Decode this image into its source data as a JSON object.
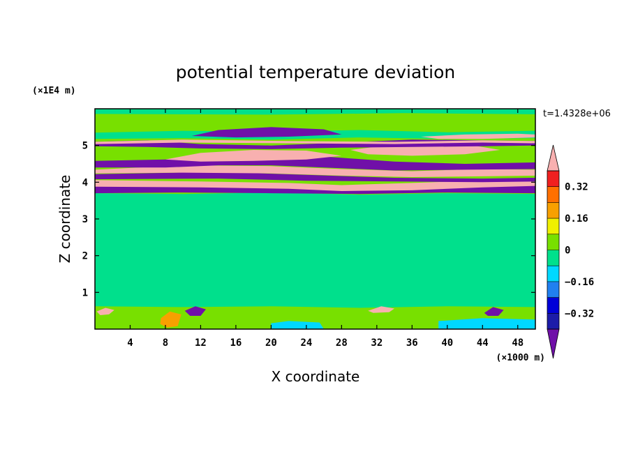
{
  "chart_data": {
    "type": "heatmap",
    "title": "potential temperature deviation",
    "xlabel": "X coordinate",
    "ylabel": "Z coordinate",
    "x_unit": "(×1000 m)",
    "y_unit": "(×1E4 m)",
    "time_label": "t=1.4328e+06",
    "xlim": [
      0,
      50
    ],
    "ylim": [
      0,
      6
    ],
    "x_ticks": [
      4,
      8,
      12,
      16,
      20,
      24,
      28,
      32,
      36,
      40,
      44,
      48
    ],
    "x_tick_labels": [
      "4",
      "8",
      "12",
      "16",
      "20",
      "24",
      "28",
      "32",
      "36",
      "40",
      "44",
      "48"
    ],
    "y_ticks": [
      1,
      2,
      3,
      4,
      5
    ],
    "y_tick_labels": [
      "1",
      "2",
      "3",
      "4",
      "5"
    ],
    "colorbar": {
      "levels": [
        -0.4,
        -0.32,
        -0.24,
        -0.16,
        -0.08,
        0,
        0.08,
        0.16,
        0.24,
        0.32,
        0.4
      ],
      "labeled_levels": [
        0.32,
        0.16,
        0,
        -0.16,
        -0.32
      ],
      "labeled_text": [
        "0.32",
        "0.16",
        "0",
        "−0.16",
        "−0.32"
      ],
      "colors_bottom_to_top": [
        "#1c1ca8",
        "#0000d8",
        "#2080f0",
        "#00d8ff",
        "#00e08c",
        "#78e000",
        "#f0f000",
        "#f8a000",
        "#ff7000",
        "#f02020"
      ],
      "under_color": "#7010a8",
      "over_color": "#f8b0b0"
    },
    "background_color": "#78e000",
    "bands": [
      {
        "color": "#00e08c",
        "points": [
          [
            0,
            3.7
          ],
          [
            10,
            3.68
          ],
          [
            20,
            3.72
          ],
          [
            30,
            3.66
          ],
          [
            40,
            3.7
          ],
          [
            50,
            3.68
          ],
          [
            50,
            0.6
          ],
          [
            40,
            0.62
          ],
          [
            30,
            0.58
          ],
          [
            20,
            0.62
          ],
          [
            10,
            0.6
          ],
          [
            0,
            0.62
          ]
        ]
      },
      {
        "color": "#00e08c",
        "points": [
          [
            0,
            5.35
          ],
          [
            10,
            5.4
          ],
          [
            20,
            5.38
          ],
          [
            30,
            5.42
          ],
          [
            40,
            5.36
          ],
          [
            50,
            5.4
          ],
          [
            50,
            5.2
          ],
          [
            40,
            5.18
          ],
          [
            30,
            5.22
          ],
          [
            20,
            5.16
          ],
          [
            10,
            5.2
          ],
          [
            0,
            5.18
          ]
        ]
      },
      {
        "color": "#00e08c",
        "points": [
          [
            0,
            6.0
          ],
          [
            50,
            6.0
          ],
          [
            50,
            5.85
          ],
          [
            35,
            5.88
          ],
          [
            20,
            5.84
          ],
          [
            0,
            5.86
          ]
        ]
      },
      {
        "color": "#7010a8",
        "points": [
          [
            0,
            3.95
          ],
          [
            10,
            3.98
          ],
          [
            20,
            3.92
          ],
          [
            30,
            3.88
          ],
          [
            40,
            3.95
          ],
          [
            50,
            3.92
          ],
          [
            50,
            3.7
          ],
          [
            40,
            3.72
          ],
          [
            30,
            3.68
          ],
          [
            20,
            3.7
          ],
          [
            10,
            3.72
          ],
          [
            0,
            3.7
          ]
        ]
      },
      {
        "color": "#f8b0b0",
        "points": [
          [
            0,
            4.06
          ],
          [
            12,
            4.02
          ],
          [
            22,
            3.98
          ],
          [
            28,
            3.92
          ],
          [
            36,
            3.98
          ],
          [
            44,
            4.05
          ],
          [
            50,
            4.02
          ],
          [
            50,
            3.9
          ],
          [
            44,
            3.86
          ],
          [
            36,
            3.78
          ],
          [
            28,
            3.76
          ],
          [
            22,
            3.82
          ],
          [
            12,
            3.86
          ],
          [
            0,
            3.88
          ]
        ]
      },
      {
        "color": "#7010a8",
        "points": [
          [
            0,
            4.22
          ],
          [
            14,
            4.28
          ],
          [
            24,
            4.2
          ],
          [
            34,
            4.12
          ],
          [
            44,
            4.1
          ],
          [
            50,
            4.12
          ],
          [
            50,
            4.02
          ],
          [
            44,
            4.0
          ],
          [
            34,
            4.02
          ],
          [
            24,
            4.04
          ],
          [
            14,
            4.1
          ],
          [
            0,
            4.08
          ]
        ]
      },
      {
        "color": "#f8b0b0",
        "points": [
          [
            0,
            4.34
          ],
          [
            10,
            4.46
          ],
          [
            20,
            4.44
          ],
          [
            28,
            4.36
          ],
          [
            36,
            4.3
          ],
          [
            44,
            4.36
          ],
          [
            50,
            4.34
          ],
          [
            50,
            4.18
          ],
          [
            44,
            4.16
          ],
          [
            36,
            4.14
          ],
          [
            28,
            4.18
          ],
          [
            20,
            4.24
          ],
          [
            10,
            4.26
          ],
          [
            0,
            4.24
          ]
        ]
      },
      {
        "color": "#7010a8",
        "points": [
          [
            0,
            4.58
          ],
          [
            8,
            4.62
          ],
          [
            14,
            4.74
          ],
          [
            20,
            4.78
          ],
          [
            26,
            4.7
          ],
          [
            34,
            4.56
          ],
          [
            42,
            4.5
          ],
          [
            50,
            4.54
          ],
          [
            50,
            4.36
          ],
          [
            42,
            4.34
          ],
          [
            34,
            4.32
          ],
          [
            26,
            4.4
          ],
          [
            20,
            4.46
          ],
          [
            14,
            4.46
          ],
          [
            8,
            4.4
          ],
          [
            0,
            4.4
          ]
        ]
      },
      {
        "color": "#f8b0b0",
        "points": [
          [
            8,
            4.62
          ],
          [
            12,
            4.8
          ],
          [
            18,
            4.88
          ],
          [
            24,
            4.86
          ],
          [
            28,
            4.72
          ],
          [
            24,
            4.62
          ],
          [
            18,
            4.58
          ],
          [
            12,
            4.56
          ]
        ]
      },
      {
        "color": "#f8b0b0",
        "points": [
          [
            29,
            4.88
          ],
          [
            33,
            5.0
          ],
          [
            38,
            5.04
          ],
          [
            43,
            5.0
          ],
          [
            46,
            4.88
          ],
          [
            42,
            4.76
          ],
          [
            36,
            4.72
          ],
          [
            31,
            4.76
          ]
        ]
      },
      {
        "color": "#7010a8",
        "points": [
          [
            0,
            5.1
          ],
          [
            6,
            5.14
          ],
          [
            12,
            5.04
          ],
          [
            20,
            5.0
          ],
          [
            28,
            5.08
          ],
          [
            36,
            5.16
          ],
          [
            44,
            5.14
          ],
          [
            50,
            5.12
          ],
          [
            50,
            5.0
          ],
          [
            44,
            4.98
          ],
          [
            36,
            4.96
          ],
          [
            28,
            4.94
          ],
          [
            20,
            4.9
          ],
          [
            12,
            4.92
          ],
          [
            6,
            4.96
          ],
          [
            0,
            4.98
          ]
        ]
      },
      {
        "color": "#7010a8",
        "points": [
          [
            11,
            5.26
          ],
          [
            14,
            5.42
          ],
          [
            20,
            5.5
          ],
          [
            26,
            5.44
          ],
          [
            28,
            5.3
          ],
          [
            22,
            5.24
          ],
          [
            16,
            5.22
          ]
        ]
      },
      {
        "color": "#f8b0b0",
        "points": [
          [
            37,
            5.24
          ],
          [
            42,
            5.3
          ],
          [
            48,
            5.32
          ],
          [
            50,
            5.3
          ],
          [
            50,
            5.22
          ],
          [
            44,
            5.18
          ],
          [
            39,
            5.18
          ]
        ]
      },
      {
        "color": "#f8b0b0",
        "points": [
          [
            0,
            5.1
          ],
          [
            10,
            5.16
          ],
          [
            22,
            5.12
          ],
          [
            34,
            5.1
          ],
          [
            44,
            5.14
          ],
          [
            50,
            5.12
          ],
          [
            50,
            5.06
          ],
          [
            44,
            5.08
          ],
          [
            34,
            5.04
          ],
          [
            22,
            5.06
          ],
          [
            10,
            5.08
          ],
          [
            0,
            5.04
          ]
        ]
      },
      {
        "color": "#f8a000",
        "points": [
          [
            7.5,
            0.3
          ],
          [
            8.5,
            0.48
          ],
          [
            9.8,
            0.4
          ],
          [
            9.4,
            0.08
          ],
          [
            8.2,
            0.04
          ],
          [
            7.4,
            0.14
          ]
        ]
      },
      {
        "color": "#00d8ff",
        "points": [
          [
            39,
            0.0
          ],
          [
            50,
            0.0
          ],
          [
            50,
            0.26
          ],
          [
            44,
            0.3
          ],
          [
            39,
            0.22
          ]
        ]
      },
      {
        "color": "#00d8ff",
        "points": [
          [
            20,
            0.0
          ],
          [
            26,
            0.0
          ],
          [
            25.5,
            0.18
          ],
          [
            22,
            0.22
          ],
          [
            20,
            0.16
          ]
        ]
      },
      {
        "color": "#f8b0b0",
        "points": [
          [
            0.2,
            0.48
          ],
          [
            1.2,
            0.58
          ],
          [
            2.2,
            0.52
          ],
          [
            1.6,
            0.4
          ],
          [
            0.6,
            0.38
          ]
        ]
      },
      {
        "color": "#7010a8",
        "points": [
          [
            10.2,
            0.5
          ],
          [
            11.4,
            0.62
          ],
          [
            12.6,
            0.54
          ],
          [
            12.0,
            0.36
          ],
          [
            10.8,
            0.36
          ]
        ]
      },
      {
        "color": "#f8b0b0",
        "points": [
          [
            31.0,
            0.5
          ],
          [
            32.5,
            0.62
          ],
          [
            34.0,
            0.56
          ],
          [
            33.4,
            0.46
          ],
          [
            31.6,
            0.44
          ]
        ]
      },
      {
        "color": "#7010a8",
        "points": [
          [
            44.2,
            0.44
          ],
          [
            45.2,
            0.6
          ],
          [
            46.4,
            0.52
          ],
          [
            45.8,
            0.36
          ],
          [
            44.6,
            0.36
          ]
        ]
      }
    ]
  }
}
